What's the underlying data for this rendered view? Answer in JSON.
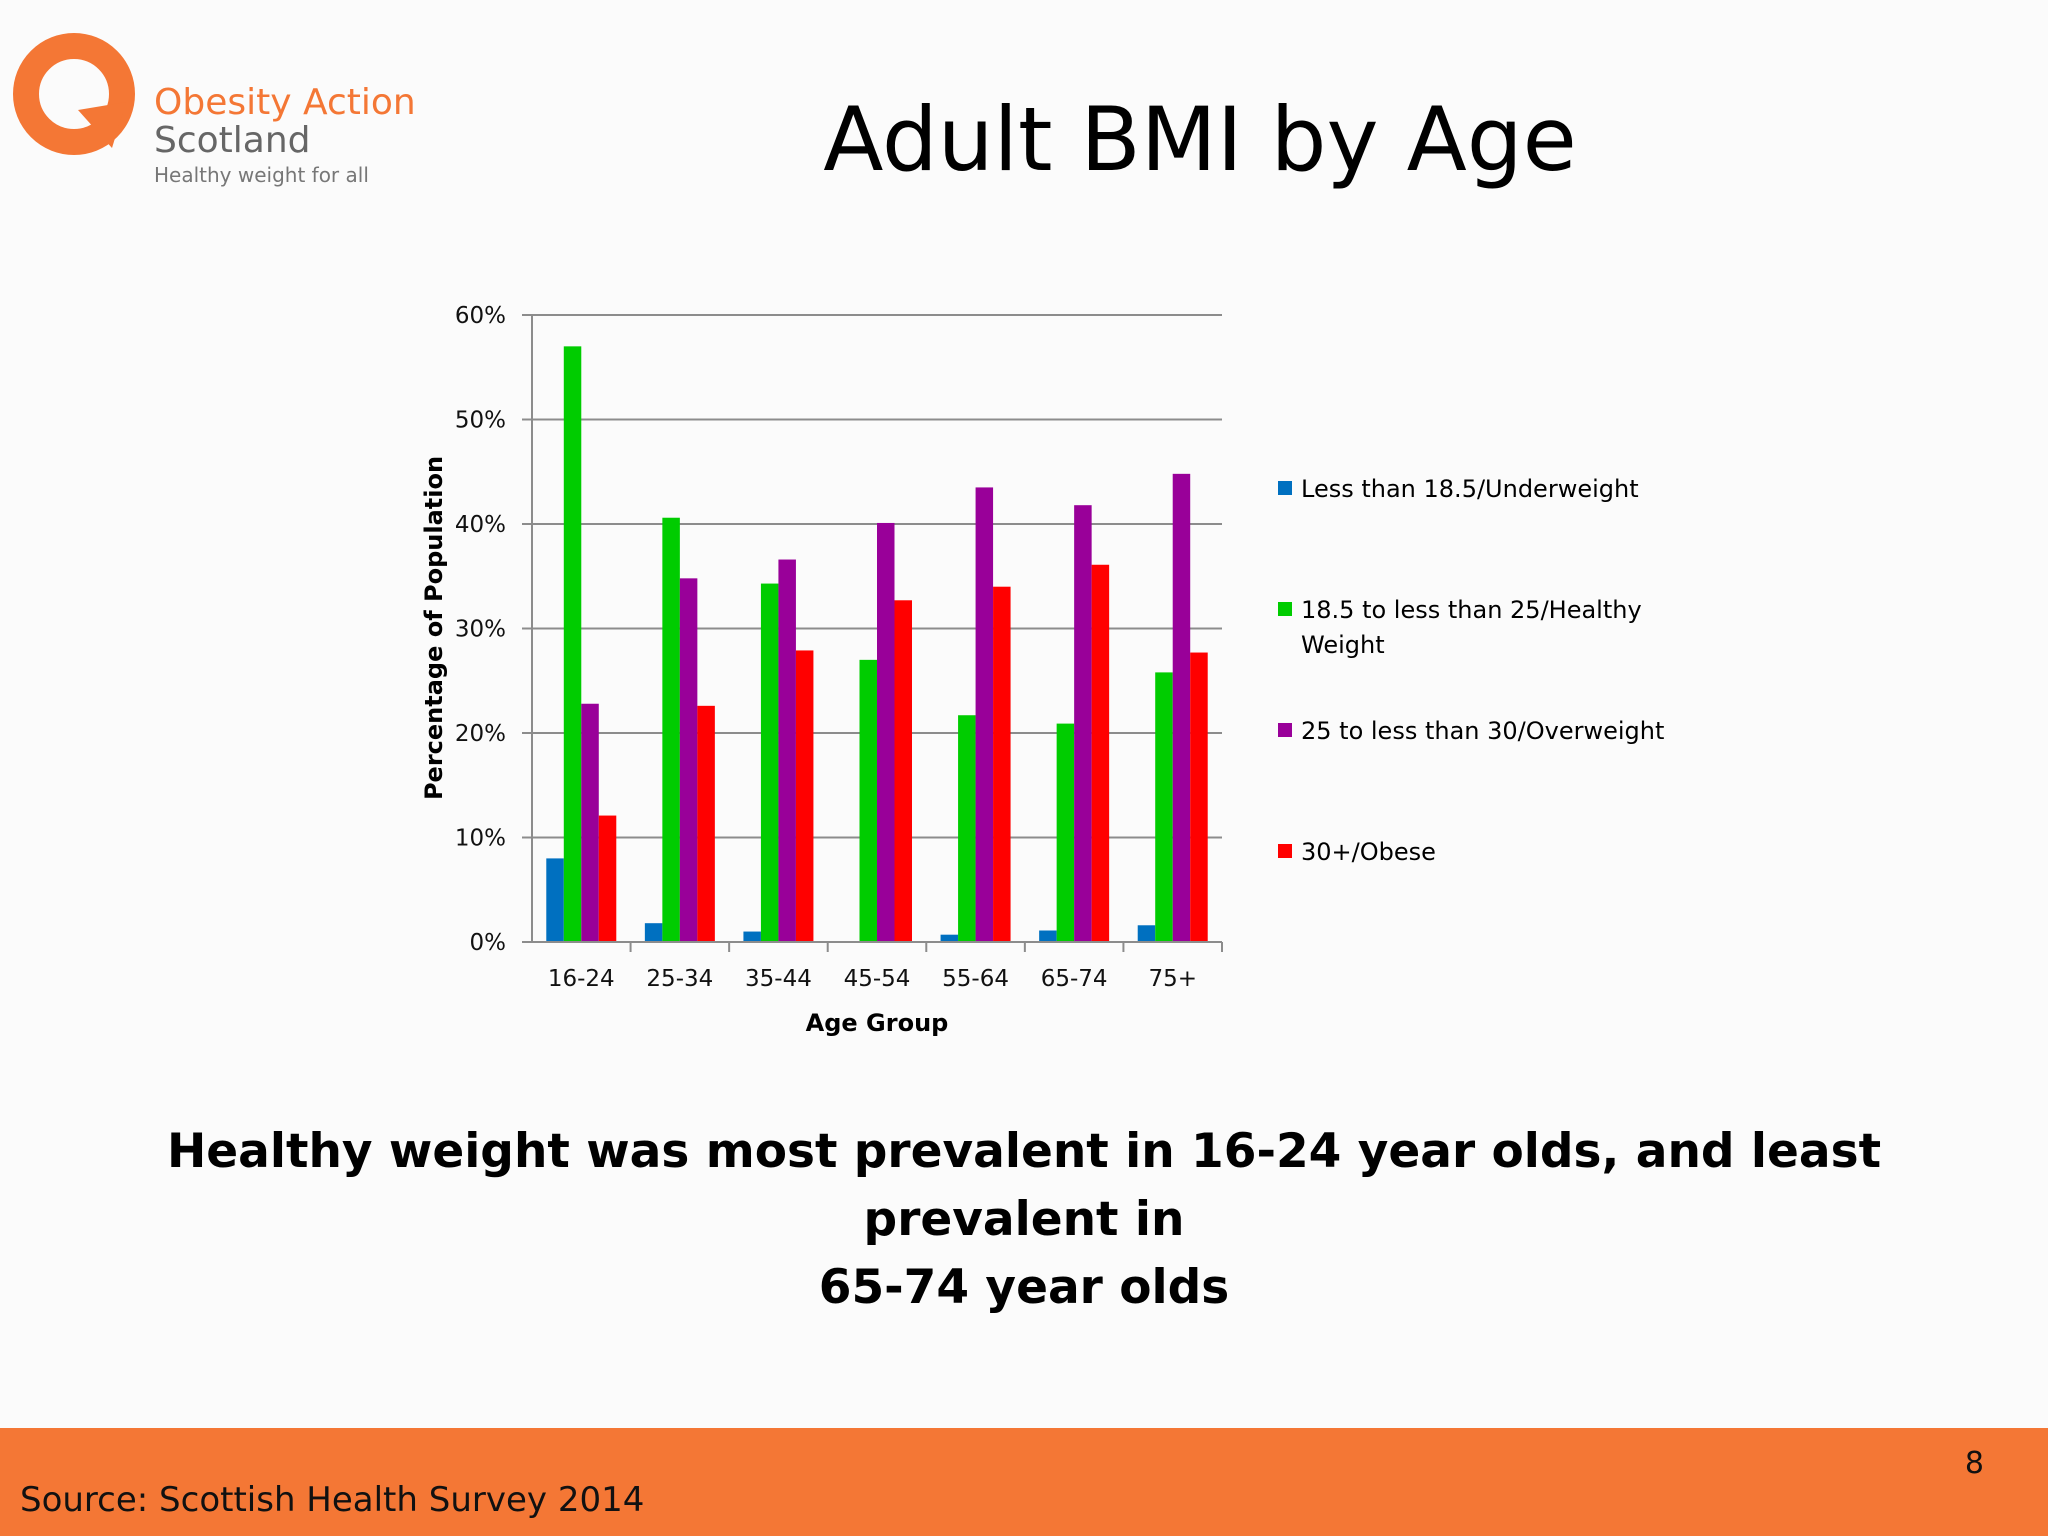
{
  "logo": {
    "line1": "Obesity Action",
    "line2": "Scotland",
    "tagline": "Healthy weight for all"
  },
  "title": "Adult BMI by Age",
  "caption": {
    "line1": "Healthy weight was most prevalent in 16-24 year olds, and least prevalent in",
    "line2": "65-74 year olds"
  },
  "footer": {
    "source": "Source: Scottish Health Survey 2014",
    "page_number": "8"
  },
  "colors": {
    "brand_orange": "#f47735",
    "underweight": "#0070c0",
    "healthy": "#00cc00",
    "overweight": "#990099",
    "obese": "#ff0000"
  },
  "chart_data": {
    "type": "bar",
    "title": "",
    "xlabel": "Age Group",
    "ylabel": "Percentage of Population",
    "ylim": [
      0,
      60
    ],
    "yticks": [
      "0%",
      "10%",
      "20%",
      "30%",
      "40%",
      "50%",
      "60%"
    ],
    "grid": true,
    "legend_position": "right",
    "categories": [
      "16-24",
      "25-34",
      "35-44",
      "45-54",
      "55-64",
      "65-74",
      "75+"
    ],
    "series": [
      {
        "name": "Less than 18.5/Underweight",
        "values": [
          8,
          1.8,
          1,
          0,
          0.7,
          1.1,
          1.6
        ]
      },
      {
        "name": "18.5 to less than 25/Healthy Weight",
        "values": [
          57,
          40.6,
          34.3,
          27,
          21.7,
          20.9,
          25.8
        ]
      },
      {
        "name": "25 to less than 30/Overweight",
        "values": [
          22.8,
          34.8,
          36.6,
          40.1,
          43.5,
          41.8,
          44.8
        ]
      },
      {
        "name": "30+/Obese",
        "values": [
          12.1,
          22.6,
          27.9,
          32.7,
          34,
          36.1,
          27.7
        ]
      }
    ]
  }
}
